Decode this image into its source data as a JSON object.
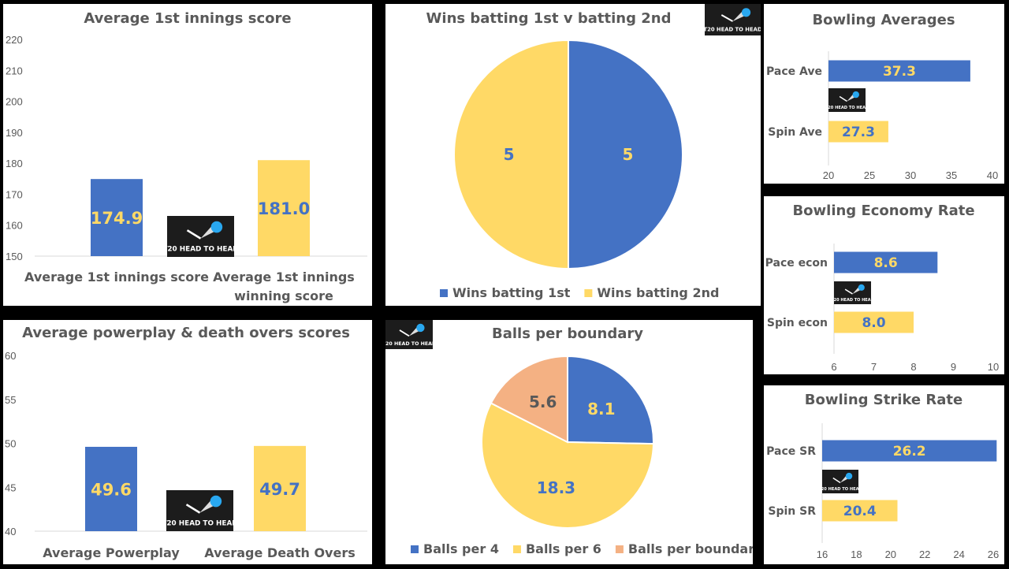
{
  "colors": {
    "blue": "#4472c4",
    "yellow": "#ffd966",
    "salmon": "#f4b183",
    "text": "#595959"
  },
  "logo_text": "T20 HEAD TO HEAD",
  "chart_data": [
    {
      "id": "avg1st",
      "type": "bar",
      "title": "Average 1st innings score",
      "categories": [
        "Average 1st innings score",
        "Average 1st innings winning score"
      ],
      "values": [
        174.9,
        181.0
      ],
      "value_labels": [
        "174.9",
        "181.0"
      ],
      "bar_colors": [
        "blue",
        "yellow"
      ],
      "label_colors": [
        "yellow",
        "blue"
      ],
      "ylim": [
        150,
        220
      ],
      "yticks": [
        150,
        160,
        170,
        180,
        190,
        200,
        210,
        220
      ],
      "grid": false
    },
    {
      "id": "wins",
      "type": "pie",
      "title": "Wins batting 1st v batting 2nd",
      "labels": [
        "Wins batting 1st",
        "Wins batting 2nd"
      ],
      "values": [
        5,
        5
      ],
      "slice_colors": [
        "blue",
        "yellow"
      ],
      "label_colors": [
        "yellow",
        "blue"
      ],
      "legend": "bottom"
    },
    {
      "id": "bowlave",
      "type": "bar",
      "orientation": "horizontal",
      "title": "Bowling Averages",
      "categories": [
        "Pace Ave",
        "Spin Ave"
      ],
      "values": [
        37.3,
        27.3
      ],
      "value_labels": [
        "37.3",
        "27.3"
      ],
      "bar_colors": [
        "blue",
        "yellow"
      ],
      "label_colors": [
        "yellow",
        "blue"
      ],
      "xlim": [
        20,
        40
      ],
      "xticks": [
        20,
        25,
        30,
        35,
        40
      ]
    },
    {
      "id": "bowlecon",
      "type": "bar",
      "orientation": "horizontal",
      "title": "Bowling Economy Rate",
      "categories": [
        "Pace econ",
        "Spin econ"
      ],
      "values": [
        8.6,
        8.0
      ],
      "value_labels": [
        "8.6",
        "8.0"
      ],
      "bar_colors": [
        "blue",
        "yellow"
      ],
      "label_colors": [
        "yellow",
        "blue"
      ],
      "xlim": [
        6,
        10
      ],
      "xticks": [
        6,
        7,
        8,
        9,
        10
      ]
    },
    {
      "id": "pp",
      "type": "bar",
      "title": "Average powerplay & death overs scores",
      "categories": [
        "Average Powerplay",
        "Average Death Overs"
      ],
      "values": [
        49.6,
        49.7
      ],
      "value_labels": [
        "49.6",
        "49.7"
      ],
      "bar_colors": [
        "blue",
        "yellow"
      ],
      "label_colors": [
        "yellow",
        "blue"
      ],
      "ylim": [
        40,
        60
      ],
      "yticks": [
        40,
        45,
        50,
        55,
        60
      ],
      "grid": false
    },
    {
      "id": "bpb",
      "type": "pie",
      "title": "Balls per boundary",
      "labels": [
        "Balls per 4",
        "Balls per 6",
        "Balls per boundary"
      ],
      "values": [
        8.1,
        18.3,
        5.6
      ],
      "value_labels": [
        "8.1",
        "18.3",
        "5.6"
      ],
      "slice_colors": [
        "blue",
        "yellow",
        "salmon"
      ],
      "label_colors": [
        "yellow",
        "blue",
        "text"
      ],
      "legend": "bottom"
    },
    {
      "id": "bowlsr",
      "type": "bar",
      "orientation": "horizontal",
      "title": "Bowling Strike Rate",
      "categories": [
        "Pace SR",
        "Spin SR"
      ],
      "values": [
        26.2,
        20.4
      ],
      "value_labels": [
        "26.2",
        "20.4"
      ],
      "bar_colors": [
        "blue",
        "yellow"
      ],
      "label_colors": [
        "yellow",
        "blue"
      ],
      "xlim": [
        16,
        26
      ],
      "xticks": [
        16,
        18,
        20,
        22,
        24,
        26
      ]
    }
  ]
}
